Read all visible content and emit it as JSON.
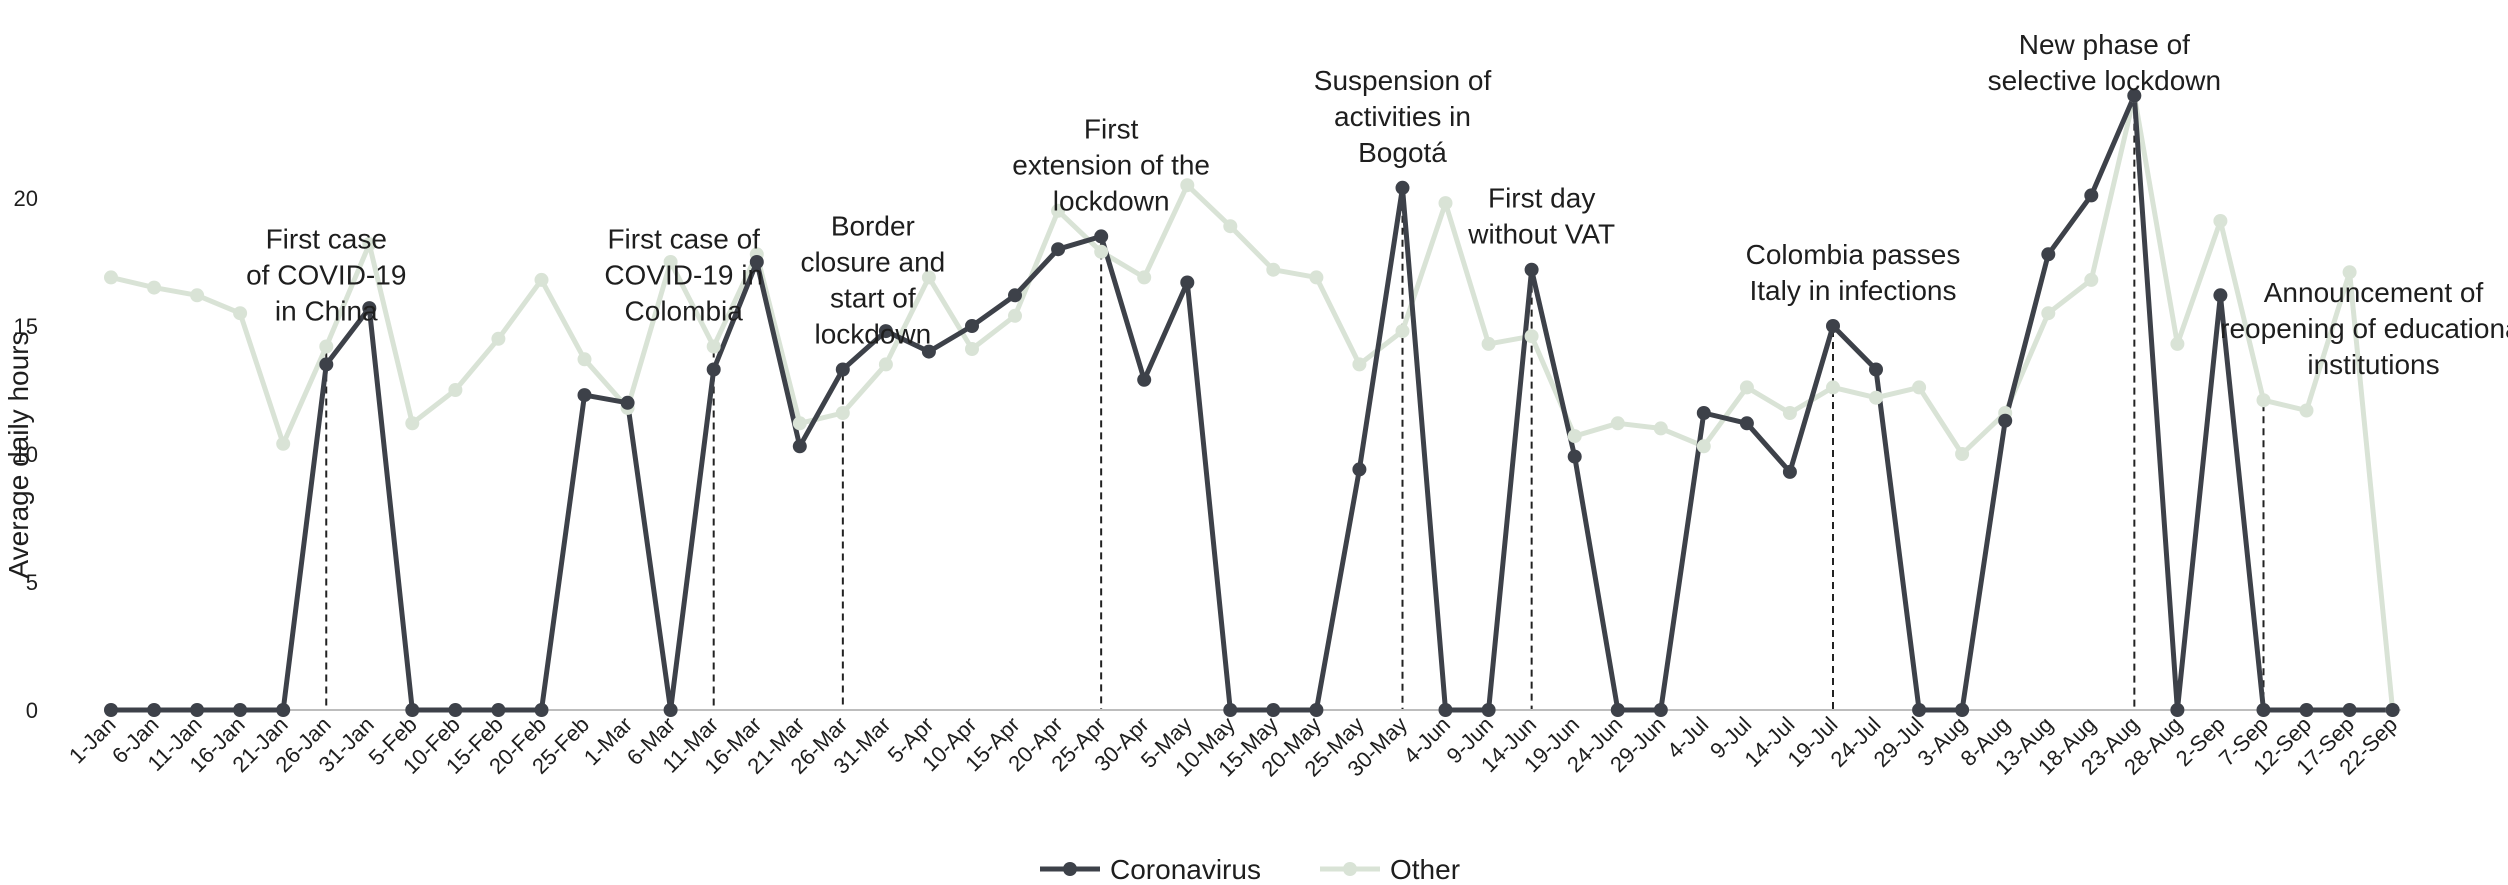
{
  "chart_data": {
    "type": "line",
    "ylabel": "Average daily hours",
    "xlabel": "",
    "ylim": [
      0,
      25
    ],
    "yticks": [
      "0",
      "5",
      "10",
      "15",
      "20"
    ],
    "grid": false,
    "legend": "bottom-center",
    "x": [
      "1-Jan",
      "6-Jan",
      "11-Jan",
      "16-Jan",
      "21-Jan",
      "26-Jan",
      "31-Jan",
      "5-Feb",
      "10-Feb",
      "15-Feb",
      "20-Feb",
      "25-Feb",
      "1-Mar",
      "6-Mar",
      "11-Mar",
      "16-Mar",
      "21-Mar",
      "26-Mar",
      "31-Mar",
      "5-Apr",
      "10-Apr",
      "15-Apr",
      "20-Apr",
      "25-Apr",
      "30-Apr",
      "5-May",
      "10-May",
      "15-May",
      "20-May",
      "25-May",
      "30-May",
      "4-Jun",
      "9-Jun",
      "14-Jun",
      "19-Jun",
      "24-Jun",
      "29-Jun",
      "4-Jul",
      "9-Jul",
      "14-Jul",
      "19-Jul",
      "24-Jul",
      "29-Jul",
      "3-Aug",
      "8-Aug",
      "13-Aug",
      "18-Aug",
      "23-Aug",
      "28-Aug",
      "2-Sep",
      "7-Sep",
      "12-Sep",
      "17-Sep",
      "22-Sep"
    ],
    "series": [
      {
        "name": "Coronavirus",
        "color": "#3d4149",
        "values": [
          0,
          0,
          0,
          0,
          0,
          13.5,
          15.7,
          0,
          0,
          0,
          0,
          12.3,
          12.0,
          0,
          13.3,
          17.5,
          10.3,
          13.3,
          14.8,
          14.0,
          15.0,
          16.2,
          18.0,
          18.5,
          12.9,
          16.7,
          0,
          0,
          0,
          9.4,
          20.4,
          0,
          0,
          17.2,
          9.9,
          0,
          0,
          11.6,
          11.2,
          9.3,
          15.0,
          13.3,
          0,
          0,
          11.3,
          17.8,
          20.1,
          24.0,
          0,
          16.2,
          0,
          0,
          0,
          0
        ]
      },
      {
        "name": "Other",
        "color": "#d9e3d6",
        "values": [
          16.9,
          16.5,
          16.2,
          15.5,
          10.4,
          14.2,
          18.2,
          11.2,
          12.5,
          14.5,
          16.8,
          13.7,
          11.8,
          17.5,
          14.2,
          17.8,
          11.2,
          11.6,
          13.5,
          16.9,
          14.1,
          15.4,
          19.5,
          17.9,
          16.9,
          20.5,
          18.9,
          17.2,
          16.9,
          13.5,
          14.8,
          19.8,
          14.3,
          14.6,
          10.7,
          11.2,
          11.0,
          10.3,
          12.6,
          11.6,
          12.6,
          12.2,
          12.6,
          10.0,
          11.6,
          15.5,
          16.8,
          24.0,
          14.3,
          19.1,
          12.1,
          11.7,
          17.1,
          0
        ]
      }
    ],
    "annotations": [
      {
        "id": "covid-china",
        "lines": [
          "First case",
          "of COVID-19",
          "in China"
        ],
        "at": "26-Jan"
      },
      {
        "id": "covid-colombia",
        "lines": [
          "First case of",
          "COVID-19 in",
          "Colombia"
        ],
        "at": "11-Mar"
      },
      {
        "id": "border-closure",
        "lines": [
          "Border",
          "closure and",
          "start of",
          "lockdown"
        ],
        "at": "26-Mar"
      },
      {
        "id": "first-extension",
        "lines": [
          "First",
          "extension of the",
          "lockdown"
        ],
        "at": "25-Apr"
      },
      {
        "id": "suspension-bogota",
        "lines": [
          "Suspension of",
          "activities in",
          "Bogotá"
        ],
        "at": "30-May"
      },
      {
        "id": "first-day-vat",
        "lines": [
          "First day",
          "without VAT"
        ],
        "at": "14-Jun"
      },
      {
        "id": "colombia-italy",
        "lines": [
          "Colombia passes",
          "Italy in infections"
        ],
        "at": "19-Jul"
      },
      {
        "id": "selective-lockdown",
        "lines": [
          "New phase of",
          "selective lockdown"
        ],
        "at": "23-Aug"
      },
      {
        "id": "reopening-education",
        "lines": [
          "Announcement of",
          "reopening of educational",
          "institutions"
        ],
        "at": "7-Sep"
      }
    ]
  }
}
